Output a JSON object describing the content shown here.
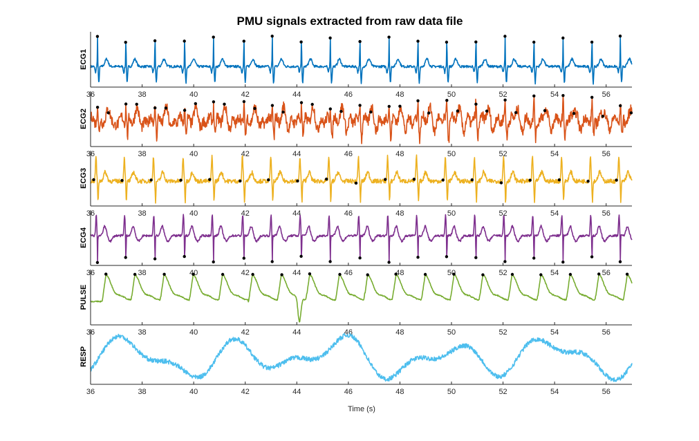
{
  "chart_data": {
    "type": "line",
    "title": "PMU signals extracted from raw data file",
    "xlabel": "Time (s)",
    "xlim": [
      36,
      57
    ],
    "xticks": [
      "36",
      "38",
      "40",
      "42",
      "44",
      "46",
      "48",
      "50",
      "52",
      "54",
      "56"
    ],
    "grid": false,
    "panels": [
      {
        "ylabel": "ECG1",
        "color": "#0072BD",
        "waveform": "ecg_spike_up",
        "peak_times": [
          36.27,
          37.37,
          38.5,
          39.65,
          40.77,
          41.95,
          43.05,
          44.18,
          45.3,
          46.45,
          47.58,
          48.7,
          49.82,
          50.95,
          52.08,
          53.2,
          54.33,
          55.45,
          56.55
        ],
        "markers": "peaks"
      },
      {
        "ylabel": "ECG2",
        "color": "#D95319",
        "waveform": "ecg_noisy",
        "peak_times": [
          36.27,
          37.37,
          38.5,
          39.65,
          40.77,
          41.95,
          43.05,
          44.18,
          45.3,
          46.45,
          47.58,
          48.7,
          49.82,
          50.95,
          52.08,
          53.2,
          54.33,
          55.45,
          56.55
        ],
        "markers": "peaks_and_secondary"
      },
      {
        "ylabel": "ECG3",
        "color": "#EDB120",
        "waveform": "ecg_mixed",
        "peak_times": [
          36.27,
          37.37,
          38.5,
          39.65,
          40.77,
          41.95,
          43.05,
          44.18,
          45.3,
          46.45,
          47.58,
          48.7,
          49.82,
          50.95,
          52.08,
          53.2,
          54.33,
          55.45,
          56.55
        ],
        "markers": "baseline"
      },
      {
        "ylabel": "ECG4",
        "color": "#7E2F8E",
        "waveform": "ecg_spike_down",
        "peak_times": [
          36.27,
          37.37,
          38.5,
          39.65,
          40.77,
          41.95,
          43.05,
          44.18,
          45.3,
          46.45,
          47.58,
          48.7,
          49.82,
          50.95,
          52.08,
          53.2,
          54.33,
          55.45,
          56.55
        ],
        "markers": "troughs"
      },
      {
        "ylabel": "PULSE",
        "color": "#77AC30",
        "waveform": "pulse",
        "peak_times": [
          36.6,
          37.72,
          38.85,
          39.98,
          41.12,
          42.28,
          43.4,
          44.5,
          45.65,
          46.75,
          47.85,
          48.98,
          50.1,
          51.22,
          52.35,
          53.47,
          54.6,
          55.72,
          56.82
        ],
        "markers": "peaks"
      },
      {
        "ylabel": "RESP",
        "color": "#4DBEEE",
        "waveform": "respiration",
        "markers": "none"
      }
    ]
  }
}
